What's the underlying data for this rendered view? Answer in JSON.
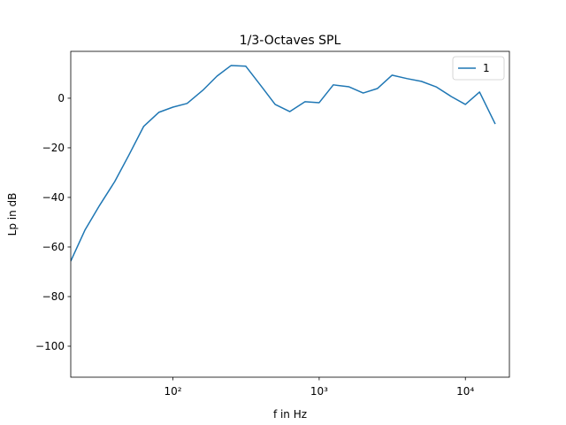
{
  "chart_data": {
    "type": "line",
    "title": "1/3-Octaves SPL",
    "x_label": "f in Hz",
    "y_label": "Lp in dB",
    "x": [
      20,
      25,
      31.5,
      40,
      50,
      63,
      80,
      100,
      125,
      160,
      200,
      250,
      315,
      400,
      500,
      630,
      800,
      1000,
      1250,
      1600,
      2000,
      2500,
      3150,
      4000,
      5000,
      6300,
      8000,
      10000,
      12500,
      16000
    ],
    "series": [
      {
        "name": "1",
        "color": "#1f77b4",
        "values": [
          -65.7,
          -53.2,
          -43.2,
          -33.6,
          -22.9,
          -11.4,
          -5.7,
          -3.6,
          -2.1,
          3.2,
          8.9,
          13.2,
          12.9,
          5,
          -2.5,
          -5.4,
          -1.4,
          -1.8,
          5.4,
          4.6,
          2.1,
          3.9,
          9.3,
          7.9,
          6.8,
          4.6,
          0.7,
          -2.5,
          2.5,
          -10.4
        ]
      }
    ],
    "xlim": [
      20,
      20000
    ],
    "ylim": [
      -112.5,
      18.9
    ],
    "xlog": true,
    "xticks": [
      {
        "value": 100,
        "label": "10²"
      },
      {
        "value": 1000,
        "label": "10³"
      },
      {
        "value": 10000,
        "label": "10⁴"
      }
    ],
    "yticks": [
      {
        "value": -100,
        "label": "−100"
      },
      {
        "value": -80,
        "label": "−80"
      },
      {
        "value": -60,
        "label": "−60"
      },
      {
        "value": -40,
        "label": "−40"
      },
      {
        "value": -20,
        "label": "−20"
      },
      0
    ],
    "legend": "upper right",
    "grid": false
  }
}
